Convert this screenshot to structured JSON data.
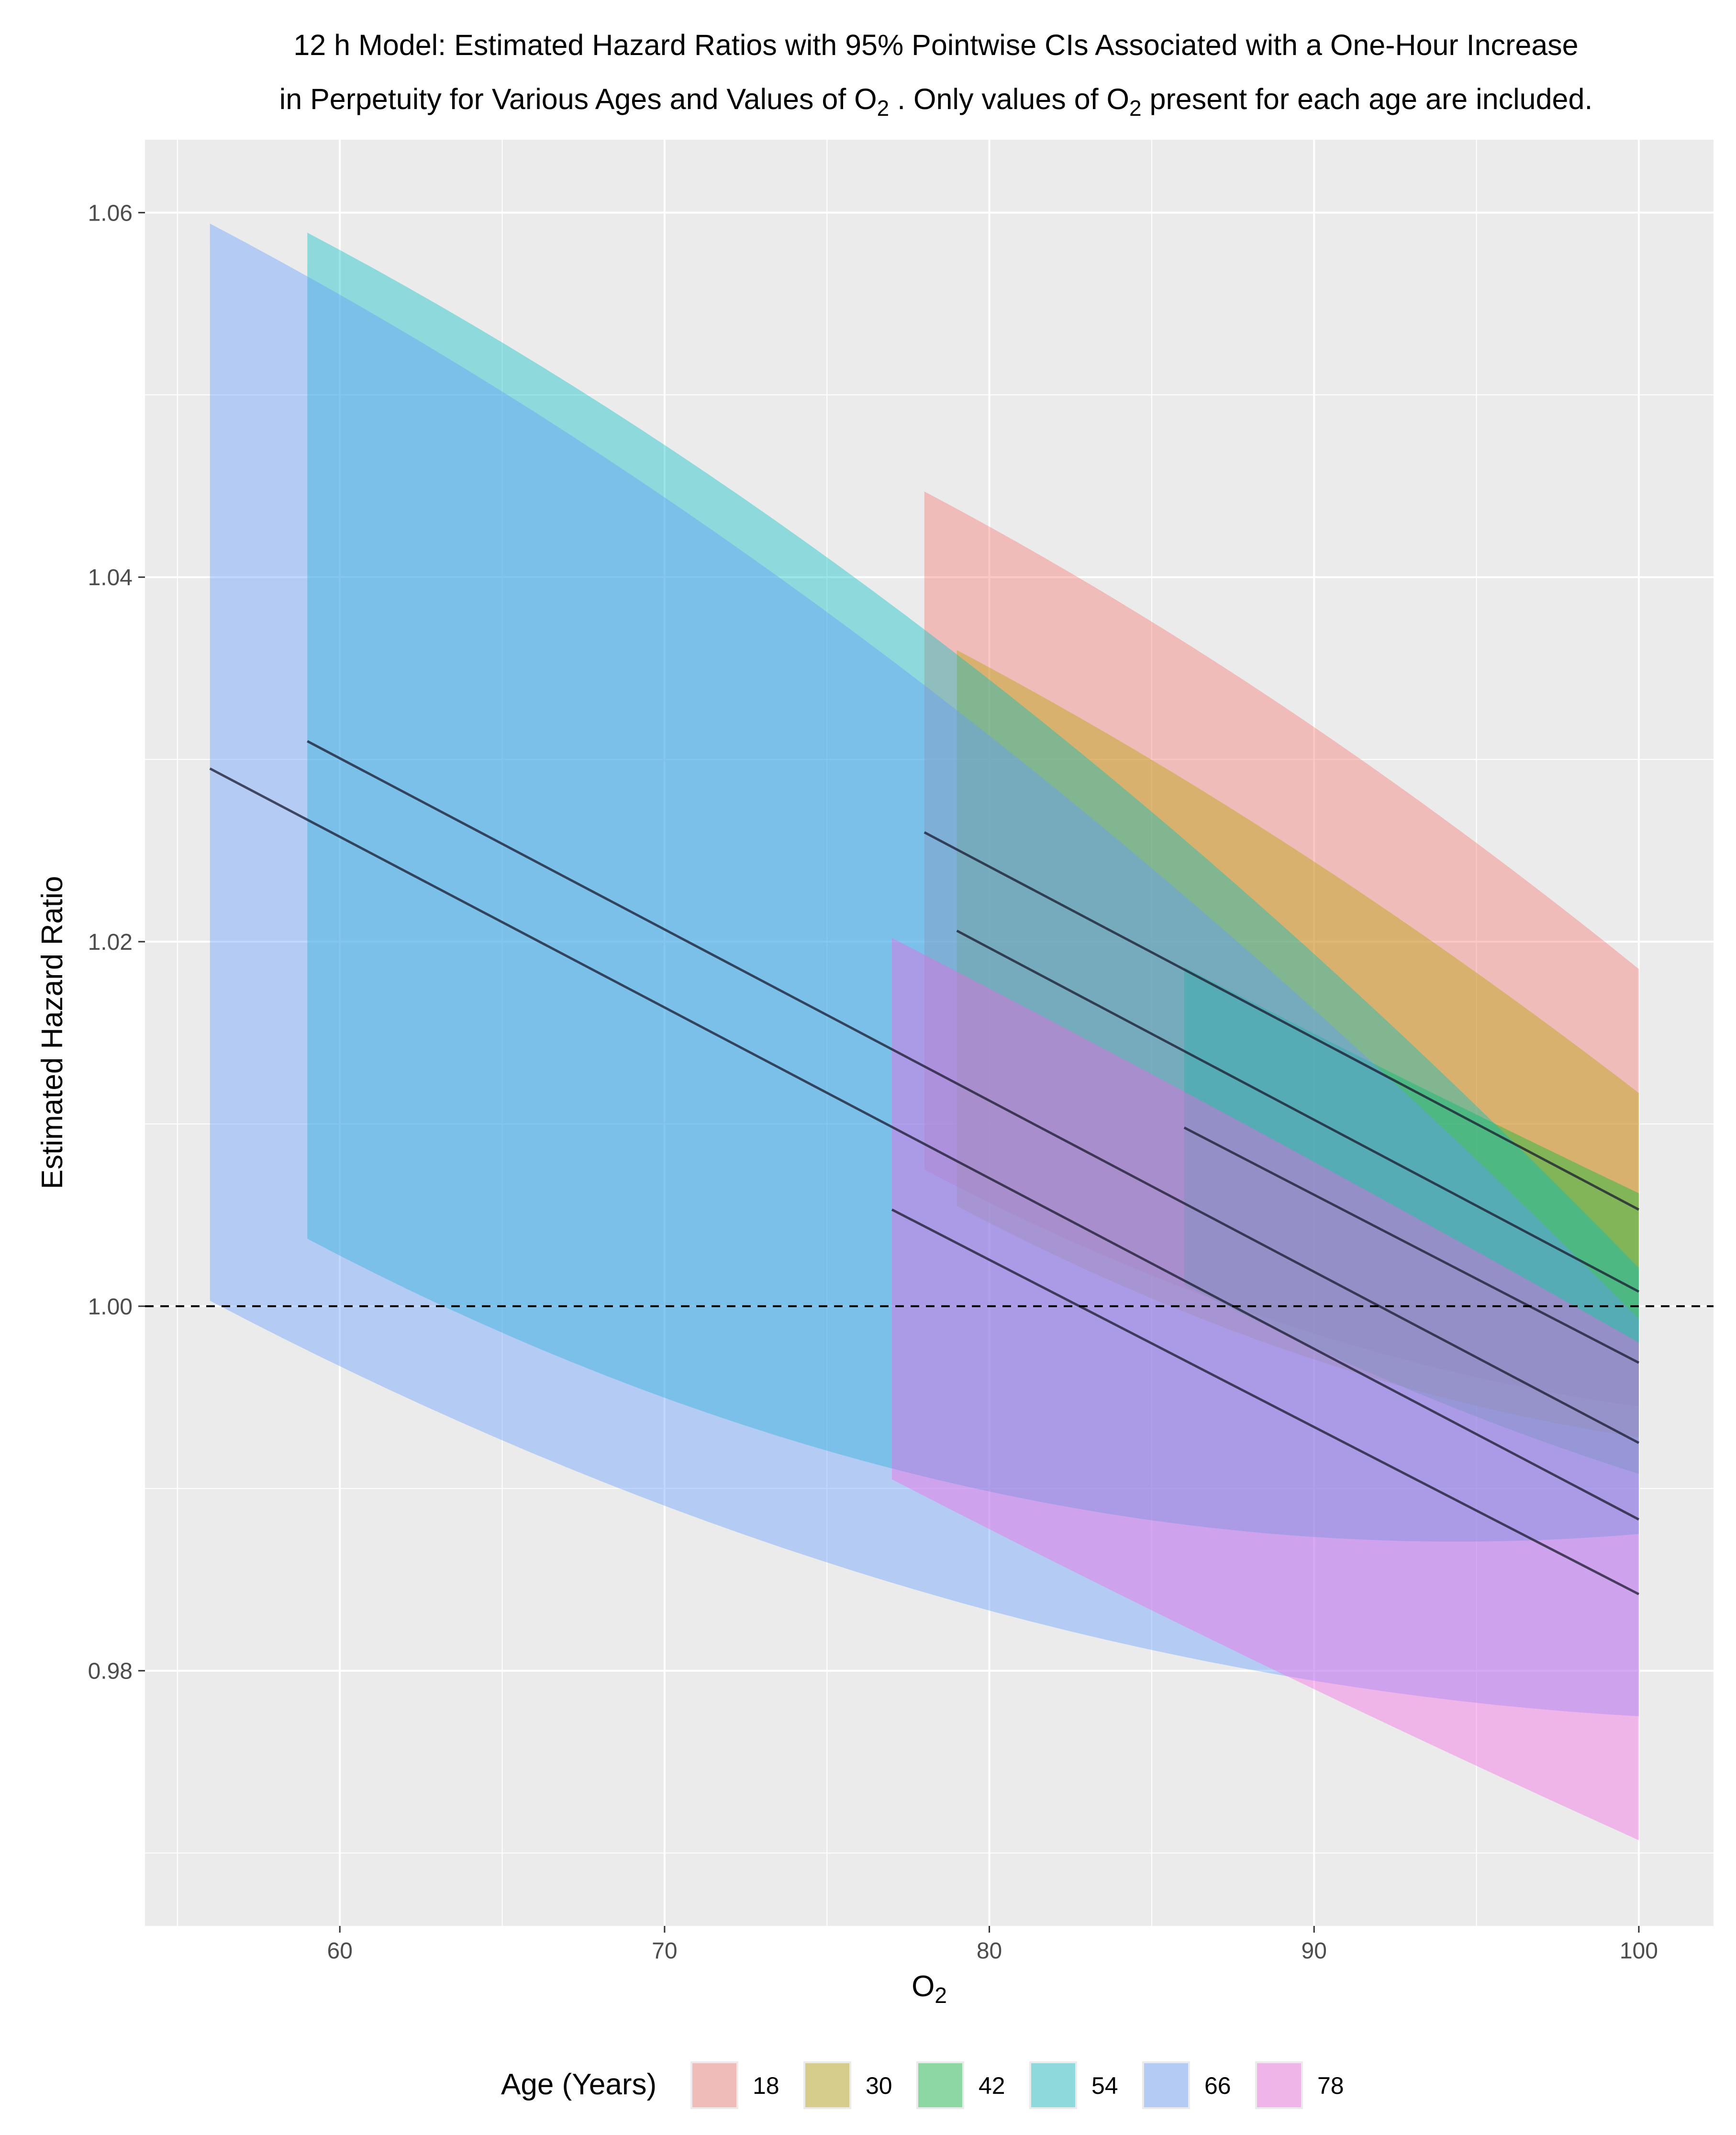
{
  "chart_data": {
    "type": "line",
    "title_line1": "12 h Model: Estimated Hazard Ratios with 95% Pointwise CIs Associated with a One-Hour Increase",
    "title_line2_parts": [
      "in Perpetuity for Various Ages and Values of ",
      "O",
      "2",
      " . Only values of ",
      "O",
      "2",
      " present for each age are included."
    ],
    "xlabel": "O",
    "xlabel_sub": "2",
    "ylabel": "Estimated Hazard Ratio",
    "xlim": [
      54,
      102.3
    ],
    "ylim": [
      0.966,
      1.064
    ],
    "x_ticks": [
      60,
      70,
      80,
      90,
      100
    ],
    "x_tick_labels": [
      "60",
      "70",
      "80",
      "90",
      "100"
    ],
    "x_minor_ticks": [
      55,
      65,
      75,
      85,
      95
    ],
    "y_ticks": [
      0.98,
      1.0,
      1.02,
      1.04,
      1.06
    ],
    "y_tick_labels": [
      "0.98",
      "1.00",
      "1.02",
      "1.04",
      "1.06"
    ],
    "y_minor_ticks": [
      0.97,
      0.99,
      1.01,
      1.03,
      1.05
    ],
    "reference_line": 1.0,
    "legend_title": "Age (Years)",
    "series": [
      {
        "name": "18",
        "color": "#F8766D",
        "x": [
          78,
          100
        ],
        "estimate": [
          1.026,
          1.0053
        ],
        "lower": [
          1.0075,
          0.9945
        ],
        "upper": [
          1.0447,
          1.0185
        ]
      },
      {
        "name": "30",
        "color": "#B79F00",
        "x": [
          79,
          100
        ],
        "estimate": [
          1.0206,
          1.0008
        ],
        "lower": [
          1.0055,
          0.9928
        ],
        "upper": [
          1.036,
          1.0117
        ]
      },
      {
        "name": "42",
        "color": "#00BA38",
        "x": [
          86,
          100
        ],
        "estimate": [
          1.0098,
          0.9969
        ],
        "lower": [
          1.0012,
          0.9908
        ],
        "upper": [
          1.0186,
          1.0062
        ]
      },
      {
        "name": "54",
        "color": "#00BFC4",
        "x": [
          59,
          100
        ],
        "estimate": [
          1.031,
          0.9925
        ],
        "lower": [
          1.0037,
          0.9875
        ],
        "upper": [
          1.0589,
          1.0021
        ]
      },
      {
        "name": "66",
        "color": "#619CFF",
        "x": [
          56,
          100
        ],
        "estimate": [
          1.0295,
          0.9883
        ],
        "lower": [
          1.0003,
          0.9775
        ],
        "upper": [
          1.0594,
          0.9993
        ]
      },
      {
        "name": "78",
        "color": "#F564E3",
        "x": [
          77,
          100
        ],
        "estimate": [
          1.0053,
          0.9842
        ],
        "lower": [
          0.9905,
          0.9707
        ],
        "upper": [
          1.0202,
          0.998
        ]
      }
    ]
  }
}
